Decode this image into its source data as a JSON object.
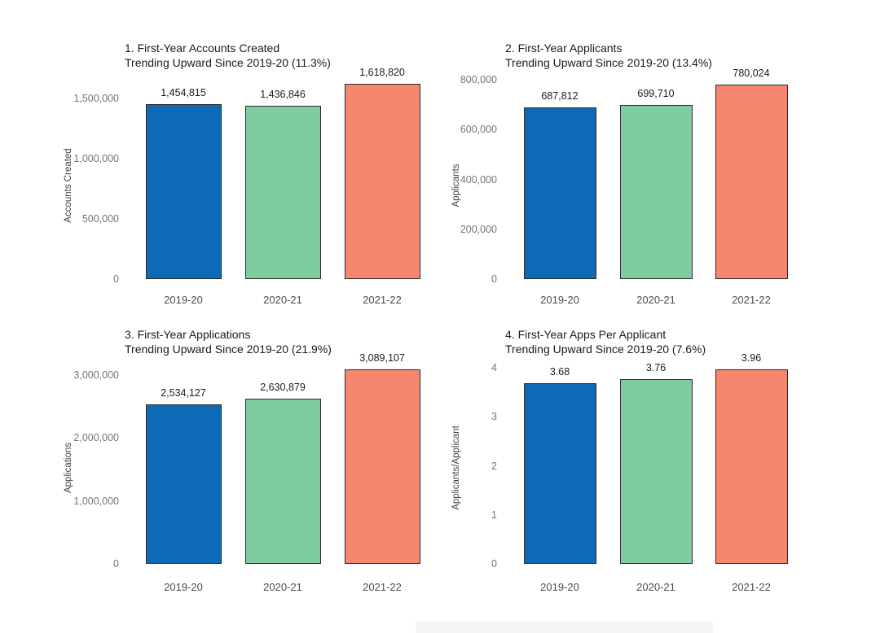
{
  "figure": {
    "background": "#ffffff",
    "columns_note": "2x2 grid of bar charts about first-year college application trends"
  },
  "palette": {
    "bar_colors": [
      "#0e6ab6",
      "#7fcca0",
      "#f5876e"
    ],
    "bar_border": "#2b2b2b",
    "title_color": "#1b1b1b",
    "ytick_color": "#757575",
    "xtick_color": "#4c4c4c",
    "value_label_color": "#1b1b1b"
  },
  "chart_data": [
    {
      "type": "bar",
      "title_line1": "1. First-Year Accounts Created",
      "title_line2": "Trending Upward Since 2019-20 (11.3%)",
      "ylabel": "Accounts Created",
      "xlabel": "",
      "categories": [
        "2019-20",
        "2020-21",
        "2021-22"
      ],
      "values": [
        1454815,
        1436846,
        1618820
      ],
      "value_labels": [
        "1,454,815",
        "1,436,846",
        "1,618,820"
      ],
      "yticks": [
        0,
        500000,
        1000000,
        1500000
      ],
      "ytick_labels": [
        "0",
        "500,000",
        "1,000,000",
        "1,500,000"
      ],
      "ylim": [
        0,
        1730000
      ],
      "grid": false,
      "legend": "none"
    },
    {
      "type": "bar",
      "title_line1": "2. First-Year Applicants",
      "title_line2": "Trending Upward Since 2019-20 (13.4%)",
      "ylabel": "Applicants",
      "xlabel": "",
      "categories": [
        "2019-20",
        "2020-21",
        "2021-22"
      ],
      "values": [
        687812,
        699710,
        780024
      ],
      "value_labels": [
        "687,812",
        "699,710",
        "780,024"
      ],
      "yticks": [
        0,
        200000,
        400000,
        600000,
        800000
      ],
      "ytick_labels": [
        "0",
        "200,000",
        "400,000",
        "600,000",
        "800,000"
      ],
      "ylim": [
        0,
        836000
      ],
      "grid": false,
      "legend": "none"
    },
    {
      "type": "bar",
      "title_line1": "3. First-Year Applications",
      "title_line2": "Trending Upward Since 2019-20 (21.9%)",
      "ylabel": "Applications",
      "xlabel": "",
      "categories": [
        "2019-20",
        "2020-21",
        "2021-22"
      ],
      "values": [
        2534127,
        2630879,
        3089107
      ],
      "value_labels": [
        "2,534,127",
        "2,630,879",
        "3,089,107"
      ],
      "yticks": [
        0,
        1000000,
        2000000,
        3000000
      ],
      "ytick_labels": [
        "0",
        "1,000,000",
        "2,000,000",
        "3,000,000"
      ],
      "ylim": [
        0,
        3260000
      ],
      "grid": false,
      "legend": "none"
    },
    {
      "type": "bar",
      "title_line1": "4. First-Year Apps Per Applicant",
      "title_line2": "Trending Upward Since 2019-20 (7.6%)",
      "ylabel": "Applicants/Applicant",
      "xlabel": "",
      "categories": [
        "2019-20",
        "2020-21",
        "2021-22"
      ],
      "values": [
        3.68,
        3.76,
        3.96
      ],
      "value_labels": [
        "3.68",
        "3.76",
        "3.96"
      ],
      "yticks": [
        0,
        1,
        2,
        3,
        4
      ],
      "ytick_labels": [
        "0",
        "1",
        "2",
        "3",
        "4"
      ],
      "ylim": [
        0,
        4.2
      ],
      "grid": false,
      "legend": "none"
    }
  ]
}
